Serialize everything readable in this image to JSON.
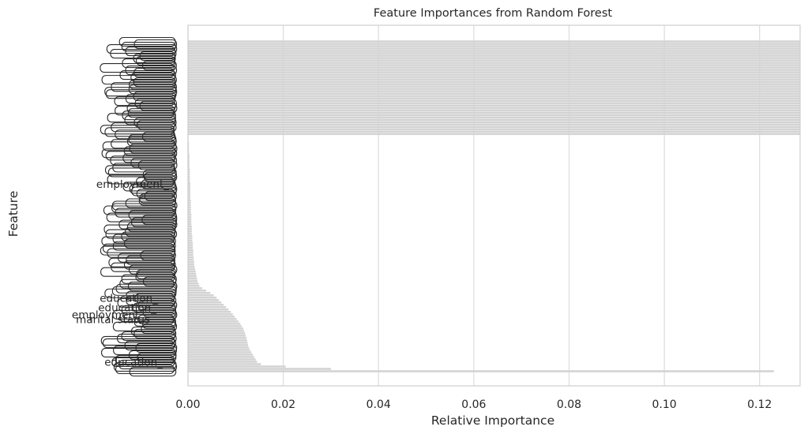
{
  "chart_data": {
    "type": "bar",
    "orientation": "horizontal",
    "title": "Feature Importances from Random Forest",
    "xlabel": "Relative Importance",
    "ylabel": "Feature",
    "xlim": [
      0,
      0.1285
    ],
    "xticks": [
      0.0,
      0.02,
      0.04,
      0.06,
      0.08,
      0.1,
      0.12
    ],
    "xtick_labels": [
      "0.00",
      "0.02",
      "0.04",
      "0.06",
      "0.08",
      "0.10",
      "0.12"
    ],
    "grid": true,
    "bar_color": "#d3d3d3",
    "legible_labels": [
      {
        "text": "employment_",
        "value": 0.0005
      },
      {
        "text": "education_",
        "value": 0.0062
      },
      {
        "text": "education_",
        "value": 0.0078
      },
      {
        "text": "employment_",
        "value": 0.0087
      },
      {
        "text": "marital status",
        "value": 0.0093
      },
      {
        "text": "education_",
        "value": 0.0135
      }
    ],
    "values": [
      0.1285,
      0.1285,
      0.1285,
      0.1285,
      0.1285,
      0.1285,
      0.1285,
      0.1285,
      0.1285,
      0.1285,
      0.1285,
      0.1285,
      0.1285,
      0.1285,
      0.1285,
      0.1285,
      0.1285,
      0.1285,
      0.1285,
      0.1285,
      0.1285,
      0.1285,
      0.1285,
      0.1285,
      0.1285,
      0.1285,
      0.1285,
      0.1285,
      0.1285,
      0.1285,
      0.1285,
      0.1285,
      0.1285,
      0.1285,
      0.1285,
      0.1285,
      0.1285,
      0.1285,
      0.1285,
      0.1285,
      0.0001,
      0.0001,
      0.0001,
      0.0002,
      0.0002,
      0.0002,
      0.0002,
      0.0002,
      0.0003,
      0.0003,
      0.0003,
      0.0003,
      0.0003,
      0.0003,
      0.0004,
      0.0004,
      0.0004,
      0.0004,
      0.0004,
      0.0004,
      0.0005,
      0.0005,
      0.0005,
      0.0005,
      0.0005,
      0.0005,
      0.0005,
      0.0006,
      0.0006,
      0.0006,
      0.0006,
      0.0006,
      0.0006,
      0.0007,
      0.0007,
      0.0007,
      0.0007,
      0.0007,
      0.0008,
      0.0008,
      0.0008,
      0.0008,
      0.0009,
      0.0009,
      0.0009,
      0.001,
      0.001,
      0.001,
      0.0011,
      0.0011,
      0.0011,
      0.0012,
      0.0012,
      0.0013,
      0.0013,
      0.0014,
      0.0015,
      0.0016,
      0.0017,
      0.0018,
      0.0019,
      0.002,
      0.0022,
      0.0024,
      0.003,
      0.0038,
      0.0047,
      0.0054,
      0.006,
      0.0065,
      0.007,
      0.0075,
      0.008,
      0.0085,
      0.009,
      0.0094,
      0.0098,
      0.0102,
      0.0106,
      0.011,
      0.0113,
      0.0116,
      0.0118,
      0.012,
      0.0121,
      0.0123,
      0.0124,
      0.0125,
      0.0126,
      0.0128,
      0.013,
      0.0133,
      0.0136,
      0.0139,
      0.0142,
      0.0145,
      0.0153,
      0.0205,
      0.03,
      0.123
    ]
  }
}
